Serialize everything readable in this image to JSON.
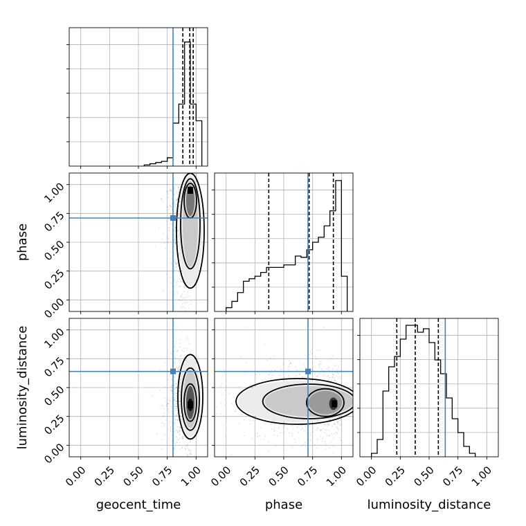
{
  "chart_data": {
    "type": "corner",
    "parameters": [
      "geocent_time",
      "phase",
      "luminosity_distance"
    ],
    "ticks": [
      0.0,
      0.25,
      0.5,
      0.75,
      1.0
    ],
    "tick_labels": [
      "0.00",
      "0.25",
      "0.50",
      "0.75",
      "1.00"
    ],
    "xlim": [
      -0.1,
      1.1
    ],
    "ylim": [
      -0.1,
      1.1
    ],
    "grid": true,
    "truth_color": "#4682b4",
    "truths": {
      "geocent_time": 0.8,
      "phase": 0.71,
      "luminosity_distance": 0.64
    },
    "histograms": [
      {
        "parameter": "geocent_time",
        "bins": [
          0.55,
          0.6,
          0.65,
          0.7,
          0.75,
          0.8,
          0.85,
          0.9,
          0.95,
          1.0,
          1.05
        ],
        "counts": [
          0.5,
          1.0,
          1.5,
          2.0,
          3.5,
          18.0,
          26.0,
          52.0,
          26.0,
          19.0
        ],
        "ymax": 58,
        "quantiles": [
          0.885,
          0.945,
          0.975
        ]
      },
      {
        "parameter": "phase",
        "bins": [
          0.0,
          0.05,
          0.1,
          0.15,
          0.2,
          0.25,
          0.3,
          0.35,
          0.4,
          0.45,
          0.5,
          0.55,
          0.6,
          0.65,
          0.7,
          0.75,
          0.8,
          0.85,
          0.9,
          0.95,
          1.0,
          1.05
        ],
        "counts": [
          3,
          8,
          15,
          24,
          26,
          28,
          31,
          35,
          35,
          35,
          37,
          37,
          44,
          43,
          49,
          55,
          59,
          68,
          80,
          104,
          28
        ],
        "ymax": 110,
        "quantiles": [
          0.37,
          0.72,
          0.93
        ]
      },
      {
        "parameter": "luminosity_distance",
        "bins": [
          0.0,
          0.05,
          0.1,
          0.15,
          0.2,
          0.25,
          0.3,
          0.35,
          0.4,
          0.45,
          0.5,
          0.55,
          0.6,
          0.65,
          0.7,
          0.75,
          0.8,
          0.85,
          0.9
        ],
        "counts": [
          1,
          5,
          19,
          26,
          29,
          34,
          38,
          38,
          36,
          37,
          33,
          28,
          24,
          17,
          11,
          7,
          3,
          1
        ],
        "ymax": 40,
        "quantiles": [
          0.22,
          0.38,
          0.58
        ]
      }
    ],
    "joint_2d": [
      {
        "x": "geocent_time",
        "y": "phase",
        "mode": [
          0.95,
          0.95
        ]
      },
      {
        "x": "geocent_time",
        "y": "luminosity_distance",
        "mode": [
          0.95,
          0.35
        ]
      },
      {
        "x": "phase",
        "y": "luminosity_distance",
        "mode": [
          0.94,
          0.36
        ]
      }
    ]
  }
}
